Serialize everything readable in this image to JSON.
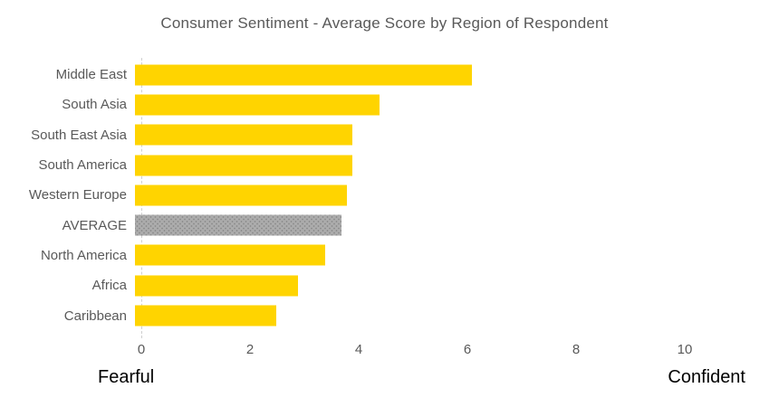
{
  "title": "Consumer Sentiment - Average Score by Region of Respondent",
  "axis": {
    "left_label": "Fearful",
    "right_label": "Confident"
  },
  "colors": {
    "bar": "#FFD400",
    "average_bar": "#ACACAC",
    "text_gray": "#595959",
    "axis_line": "#CFCFCF",
    "endpoint_text": "#000000"
  },
  "chart_data": {
    "type": "bar",
    "orientation": "horizontal",
    "title": "Consumer Sentiment - Average Score by Region of Respondent",
    "categories": [
      "Middle East",
      "South Asia",
      "South East Asia",
      "South America",
      "Western Europe",
      "AVERAGE",
      "North America",
      "Africa",
      "Caribbean"
    ],
    "values": [
      6.2,
      4.5,
      4.0,
      4.0,
      3.9,
      3.8,
      3.5,
      3.0,
      2.6
    ],
    "highlight_category": "AVERAGE",
    "xlim": [
      0,
      10
    ],
    "xticks": [
      0,
      2,
      4,
      6,
      8,
      10
    ],
    "xlabel_left": "Fearful",
    "xlabel_right": "Confident",
    "legend": "none",
    "grid": "off"
  }
}
